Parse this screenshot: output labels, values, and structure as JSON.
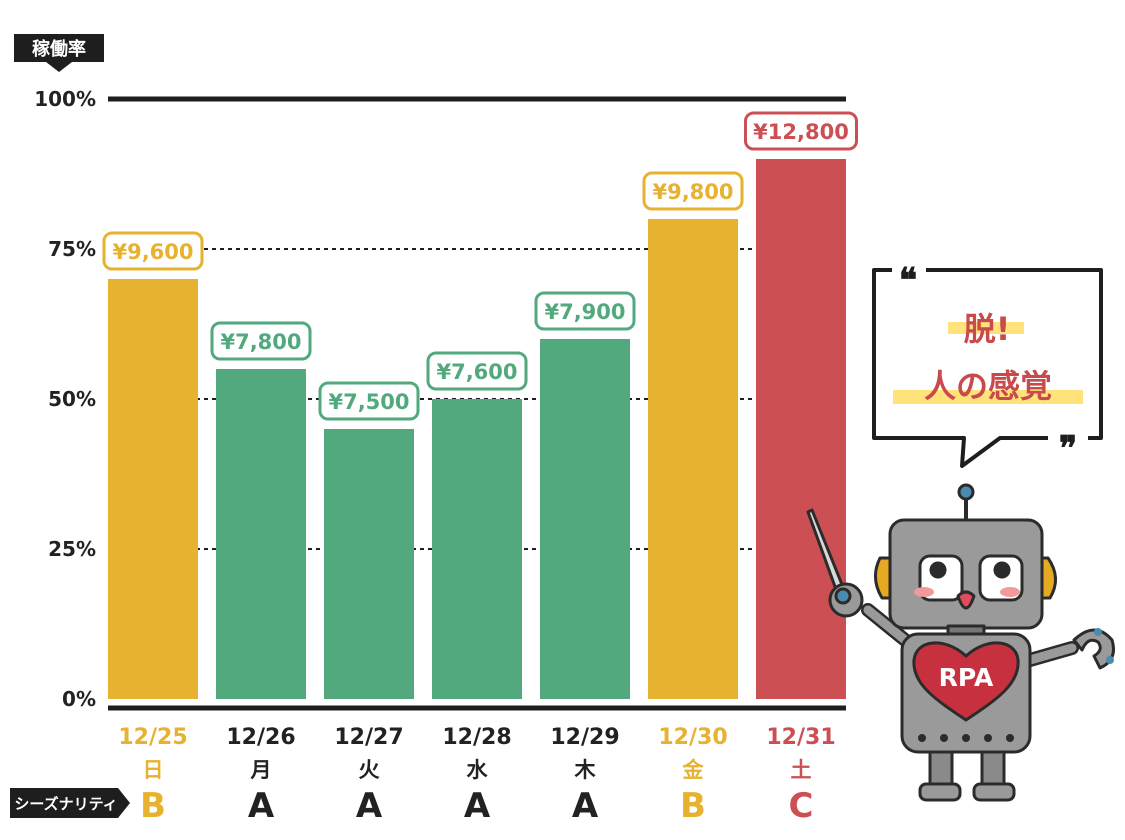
{
  "colors": {
    "A": "#52a97e",
    "B": "#e6b22f",
    "C": "#cc5053",
    "axis": "#1e1e1e",
    "neutral_text": "#222222"
  },
  "chart_data": {
    "type": "bar",
    "ylabel": "稼働率",
    "ylim": [
      0,
      100
    ],
    "yticks": [
      0,
      25,
      50,
      75,
      100
    ],
    "ytick_labels": [
      "0%",
      "25%",
      "50%",
      "75%",
      "100%"
    ],
    "grid": "dashed at 25%, 50%, 75%",
    "categories": [
      "12/25",
      "12/26",
      "12/27",
      "12/28",
      "12/29",
      "12/30",
      "12/31"
    ],
    "days": [
      "日",
      "月",
      "火",
      "水",
      "木",
      "金",
      "土"
    ],
    "values": [
      70,
      55,
      45,
      50,
      60,
      80,
      90
    ],
    "prices": [
      "¥9,600",
      "¥7,800",
      "¥7,500",
      "¥7,600",
      "¥7,900",
      "¥9,800",
      "¥12,800"
    ],
    "seasonality": [
      "B",
      "A",
      "A",
      "A",
      "A",
      "B",
      "C"
    ],
    "seasonality_label": "シーズナリティ"
  },
  "callout": {
    "line1": "脱!",
    "line2": "人の感覚",
    "open_quote": "❝",
    "close_quote": "❞"
  },
  "mascot": {
    "badge": "RPA",
    "icon": "robot-icon"
  }
}
